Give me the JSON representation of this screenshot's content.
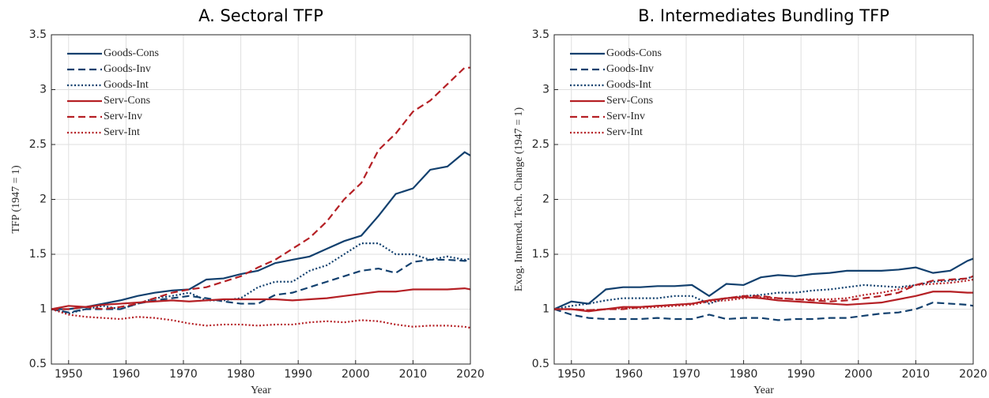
{
  "chart_data": [
    {
      "type": "line",
      "title": "A. Sectoral TFP",
      "x_label": "Year",
      "y_label": "TFP (1947 = 1)",
      "x": [
        1947,
        1950,
        1953,
        1956,
        1959,
        1962,
        1965,
        1968,
        1971,
        1974,
        1977,
        1980,
        1983,
        1986,
        1989,
        1992,
        1995,
        1998,
        2001,
        2004,
        2007,
        2010,
        2013,
        2016,
        2019,
        2020
      ],
      "xlim": [
        1947,
        2020
      ],
      "xticks": [
        1950,
        1960,
        1970,
        1980,
        1990,
        2000,
        2010,
        2020
      ],
      "ylim": [
        0.5,
        3.5
      ],
      "yticks": [
        0.5,
        1,
        1.5,
        2,
        2.5,
        3,
        3.5
      ],
      "grid": true,
      "legend": "upper left",
      "series": [
        {
          "name": "Goods-Cons",
          "color": "#12406e",
          "dash": "solid",
          "values": [
            1.0,
            1.0,
            1.02,
            1.05,
            1.08,
            1.12,
            1.15,
            1.17,
            1.18,
            1.27,
            1.28,
            1.32,
            1.35,
            1.42,
            1.45,
            1.48,
            1.55,
            1.62,
            1.67,
            1.85,
            2.05,
            2.1,
            2.27,
            2.3,
            2.43,
            2.4
          ]
        },
        {
          "name": "Goods-Inv",
          "color": "#12406e",
          "dash": "dashed",
          "values": [
            1.0,
            0.97,
            1.0,
            1.0,
            1.0,
            1.05,
            1.08,
            1.1,
            1.12,
            1.1,
            1.07,
            1.05,
            1.05,
            1.13,
            1.15,
            1.2,
            1.25,
            1.3,
            1.35,
            1.37,
            1.33,
            1.43,
            1.45,
            1.45,
            1.44,
            1.45
          ]
        },
        {
          "name": "Goods-Int",
          "color": "#12406e",
          "dash": "dotted",
          "values": [
            1.0,
            0.96,
            1.0,
            1.03,
            1.0,
            1.05,
            1.1,
            1.12,
            1.15,
            1.08,
            1.08,
            1.1,
            1.2,
            1.25,
            1.25,
            1.35,
            1.4,
            1.5,
            1.6,
            1.6,
            1.5,
            1.5,
            1.45,
            1.48,
            1.45,
            1.46
          ]
        },
        {
          "name": "Serv-Cons",
          "color": "#b52025",
          "dash": "solid",
          "values": [
            1.0,
            1.03,
            1.02,
            1.04,
            1.05,
            1.06,
            1.07,
            1.08,
            1.07,
            1.08,
            1.09,
            1.09,
            1.09,
            1.09,
            1.08,
            1.09,
            1.1,
            1.12,
            1.14,
            1.16,
            1.16,
            1.18,
            1.18,
            1.18,
            1.19,
            1.18
          ]
        },
        {
          "name": "Serv-Inv",
          "color": "#b52025",
          "dash": "dashed",
          "values": [
            1.0,
            1.0,
            1.02,
            1.0,
            1.02,
            1.05,
            1.1,
            1.15,
            1.18,
            1.2,
            1.25,
            1.3,
            1.38,
            1.45,
            1.55,
            1.65,
            1.8,
            2.0,
            2.15,
            2.45,
            2.6,
            2.8,
            2.9,
            3.05,
            3.2,
            3.2
          ]
        },
        {
          "name": "Serv-Int",
          "color": "#b52025",
          "dash": "dotted",
          "values": [
            1.0,
            0.95,
            0.93,
            0.92,
            0.91,
            0.93,
            0.92,
            0.9,
            0.87,
            0.85,
            0.86,
            0.86,
            0.85,
            0.86,
            0.86,
            0.88,
            0.89,
            0.88,
            0.9,
            0.89,
            0.86,
            0.84,
            0.85,
            0.85,
            0.84,
            0.83
          ]
        }
      ]
    },
    {
      "type": "line",
      "title": "B. Intermediates Bundling TFP",
      "x_label": "Year",
      "y_label": "Exog. Intermed. Tech. Change (1947 = 1)",
      "x": [
        1947,
        1950,
        1953,
        1956,
        1959,
        1962,
        1965,
        1968,
        1971,
        1974,
        1977,
        1980,
        1983,
        1986,
        1989,
        1992,
        1995,
        1998,
        2001,
        2004,
        2007,
        2010,
        2013,
        2016,
        2019,
        2020
      ],
      "xlim": [
        1947,
        2020
      ],
      "xticks": [
        1950,
        1960,
        1970,
        1980,
        1990,
        2000,
        2010,
        2020
      ],
      "ylim": [
        0.5,
        3.5
      ],
      "yticks": [
        0.5,
        1,
        1.5,
        2,
        2.5,
        3,
        3.5
      ],
      "grid": true,
      "legend": "upper left",
      "series": [
        {
          "name": "Goods-Cons",
          "color": "#12406e",
          "dash": "solid",
          "values": [
            1.0,
            1.07,
            1.05,
            1.18,
            1.2,
            1.2,
            1.21,
            1.21,
            1.22,
            1.12,
            1.23,
            1.22,
            1.29,
            1.31,
            1.3,
            1.32,
            1.33,
            1.35,
            1.35,
            1.35,
            1.36,
            1.38,
            1.33,
            1.35,
            1.44,
            1.46
          ]
        },
        {
          "name": "Goods-Inv",
          "color": "#12406e",
          "dash": "dashed",
          "values": [
            1.0,
            0.95,
            0.92,
            0.91,
            0.91,
            0.91,
            0.92,
            0.91,
            0.91,
            0.95,
            0.91,
            0.92,
            0.92,
            0.9,
            0.91,
            0.91,
            0.92,
            0.92,
            0.94,
            0.96,
            0.97,
            1.0,
            1.06,
            1.05,
            1.04,
            1.03
          ]
        },
        {
          "name": "Goods-Int",
          "color": "#12406e",
          "dash": "dotted",
          "values": [
            1.0,
            1.03,
            1.05,
            1.08,
            1.1,
            1.1,
            1.1,
            1.12,
            1.12,
            1.05,
            1.1,
            1.12,
            1.13,
            1.15,
            1.15,
            1.17,
            1.18,
            1.2,
            1.22,
            1.21,
            1.2,
            1.22,
            1.25,
            1.26,
            1.28,
            1.3
          ]
        },
        {
          "name": "Serv-Cons",
          "color": "#b52025",
          "dash": "solid",
          "values": [
            1.0,
            1.0,
            0.98,
            1.0,
            1.02,
            1.02,
            1.03,
            1.04,
            1.05,
            1.08,
            1.1,
            1.11,
            1.1,
            1.08,
            1.07,
            1.06,
            1.05,
            1.04,
            1.05,
            1.06,
            1.09,
            1.12,
            1.16,
            1.16,
            1.15,
            1.15
          ]
        },
        {
          "name": "Serv-Inv",
          "color": "#b52025",
          "dash": "dashed",
          "values": [
            1.0,
            1.0,
            0.99,
            1.0,
            1.0,
            1.02,
            1.03,
            1.04,
            1.05,
            1.08,
            1.1,
            1.12,
            1.12,
            1.1,
            1.09,
            1.08,
            1.07,
            1.08,
            1.1,
            1.12,
            1.15,
            1.22,
            1.26,
            1.27,
            1.28,
            1.3
          ]
        },
        {
          "name": "Serv-Int",
          "color": "#b52025",
          "dash": "dotted",
          "values": [
            1.0,
            1.0,
            0.99,
            1.0,
            1.01,
            1.01,
            1.02,
            1.03,
            1.04,
            1.07,
            1.08,
            1.1,
            1.11,
            1.1,
            1.09,
            1.09,
            1.09,
            1.1,
            1.13,
            1.15,
            1.18,
            1.22,
            1.23,
            1.24,
            1.26,
            1.27
          ]
        }
      ]
    }
  ]
}
